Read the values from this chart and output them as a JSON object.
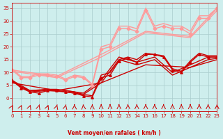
{
  "background_color": "#ceeeed",
  "grid_color": "#aacccc",
  "xlabel": "Vent moyen/en rafales ( km/h )",
  "xlabel_color": "#cc0000",
  "tick_color": "#cc0000",
  "ylim": [
    -5,
    37
  ],
  "xlim": [
    0,
    23
  ],
  "yticks": [
    0,
    5,
    10,
    15,
    20,
    25,
    30,
    35
  ],
  "xticks": [
    0,
    1,
    2,
    3,
    4,
    5,
    6,
    7,
    8,
    9,
    10,
    11,
    12,
    13,
    14,
    15,
    16,
    17,
    18,
    19,
    20,
    21,
    22,
    23
  ],
  "lines": [
    {
      "x": [
        0,
        1,
        2,
        3,
        4,
        5,
        6,
        7,
        8,
        9,
        10,
        11,
        12,
        13,
        14,
        15,
        16,
        17,
        18,
        19,
        20,
        21,
        22,
        23
      ],
      "y": [
        7,
        4,
        2.5,
        2,
        3,
        3,
        2.5,
        2,
        1,
        0.5,
        8,
        9,
        14.5,
        15.5,
        14,
        17,
        17,
        16,
        11,
        10,
        14,
        17,
        16,
        16
      ],
      "color": "#cc0000",
      "lw": 1.0,
      "marker": "^",
      "ms": 2.5
    },
    {
      "x": [
        0,
        1,
        2,
        3,
        4,
        5,
        6,
        7,
        8,
        9,
        10,
        11,
        12,
        13,
        14,
        15,
        16,
        17,
        18,
        19,
        20,
        21,
        22,
        23
      ],
      "y": [
        7,
        4.5,
        3,
        3,
        3.5,
        3.5,
        3,
        2.5,
        1.5,
        1,
        9,
        10,
        15,
        16,
        15,
        17.5,
        17,
        16.5,
        11.5,
        10.5,
        14.5,
        17.5,
        16.5,
        16.5
      ],
      "color": "#cc0000",
      "lw": 1.0,
      "marker": null,
      "ms": 0
    },
    {
      "x": [
        0,
        2,
        4,
        6,
        8,
        10,
        12,
        14,
        16,
        18,
        20,
        22,
        23
      ],
      "y": [
        7,
        3,
        3.5,
        3,
        2,
        7,
        16,
        14,
        16,
        10,
        13,
        16,
        16
      ],
      "color": "#cc0000",
      "lw": 1.0,
      "marker": null,
      "ms": 0
    },
    {
      "x": [
        0,
        2,
        4,
        6,
        8,
        10,
        12,
        14,
        16,
        18,
        20,
        22,
        23
      ],
      "y": [
        6.5,
        2.5,
        3,
        2.5,
        1.5,
        6,
        15,
        13,
        15,
        9,
        12,
        15,
        15.5
      ],
      "color": "#cc0000",
      "lw": 1.0,
      "marker": null,
      "ms": 0
    },
    {
      "x": [
        0,
        5,
        10,
        15,
        20,
        23
      ],
      "y": [
        6,
        3,
        6,
        13,
        12,
        15
      ],
      "color": "#cc0000",
      "lw": 1.0,
      "marker": null,
      "ms": 0
    },
    {
      "x": [
        0,
        1,
        2,
        3,
        4,
        5,
        6,
        7,
        8,
        9,
        10,
        11,
        12,
        13,
        14,
        15,
        16,
        17,
        18,
        19,
        20,
        21,
        22,
        23
      ],
      "y": [
        11,
        8,
        8,
        9,
        9,
        8.5,
        7,
        8.5,
        8,
        5,
        19,
        20,
        27,
        27,
        26,
        34,
        27,
        28,
        27,
        27,
        25,
        31,
        31,
        35
      ],
      "color": "#ff9999",
      "lw": 1.0,
      "marker": "D",
      "ms": 2.5
    },
    {
      "x": [
        0,
        1,
        2,
        3,
        4,
        5,
        6,
        7,
        8,
        9,
        10,
        11,
        12,
        13,
        14,
        15,
        16,
        17,
        18,
        19,
        20,
        21,
        22,
        23
      ],
      "y": [
        11.5,
        8.5,
        8.5,
        9.5,
        9.5,
        9,
        7.5,
        9,
        8.5,
        5.5,
        20,
        21,
        28,
        28,
        27,
        35,
        28,
        29,
        28,
        28,
        26,
        32,
        32,
        35
      ],
      "color": "#ff9999",
      "lw": 1.0,
      "marker": null,
      "ms": 0
    },
    {
      "x": [
        0,
        5,
        10,
        15,
        20,
        23
      ],
      "y": [
        11,
        8.5,
        17,
        26,
        24,
        35
      ],
      "color": "#ff9999",
      "lw": 1.0,
      "marker": null,
      "ms": 0
    },
    {
      "x": [
        0,
        5,
        10,
        15,
        20,
        23
      ],
      "y": [
        10.5,
        8,
        16,
        25.5,
        23.5,
        34
      ],
      "color": "#ff9999",
      "lw": 1.0,
      "marker": null,
      "ms": 0
    }
  ],
  "arrow_color": "#cc0000",
  "arrow_xs_angled": [
    0,
    1,
    2,
    3,
    4,
    5,
    6,
    7,
    8,
    9
  ],
  "arrow_xs_down": [
    10,
    11,
    12,
    13,
    14,
    15,
    16,
    17,
    18,
    19,
    20,
    21,
    22,
    23
  ]
}
